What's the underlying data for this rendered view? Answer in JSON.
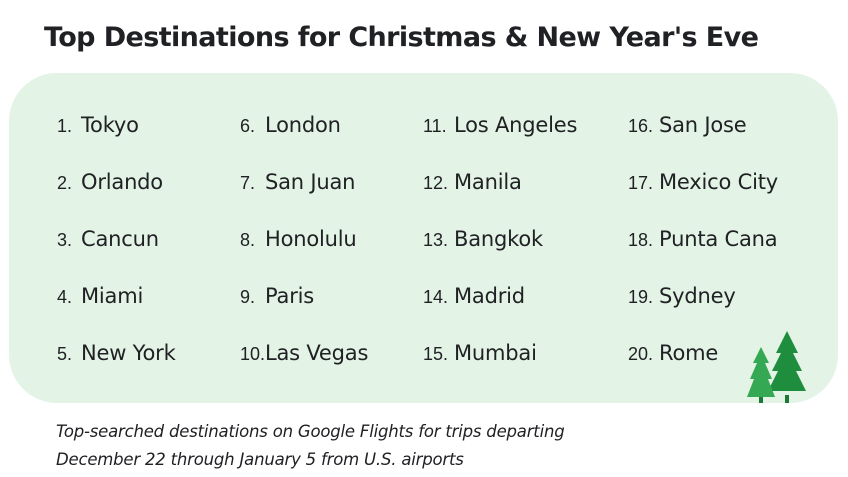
{
  "title": "Top Destinations for Christmas & New Year's Eve",
  "columns": [
    [
      {
        "num": "1.",
        "city": "Tokyo"
      },
      {
        "num": "2.",
        "city": "Orlando"
      },
      {
        "num": "3.",
        "city": "Cancun"
      },
      {
        "num": "4.",
        "city": "Miami"
      },
      {
        "num": "5.",
        "city": "New York"
      }
    ],
    [
      {
        "num": "6.",
        "city": "London"
      },
      {
        "num": "7.",
        "city": "San Juan"
      },
      {
        "num": "8.",
        "city": "Honolulu"
      },
      {
        "num": "9.",
        "city": "Paris"
      },
      {
        "num": "10.",
        "city": "Las Vegas"
      }
    ],
    [
      {
        "num": "11.",
        "city": "Los Angeles"
      },
      {
        "num": "12.",
        "city": "Manila"
      },
      {
        "num": "13.",
        "city": "Bangkok"
      },
      {
        "num": "14.",
        "city": "Madrid"
      },
      {
        "num": "15.",
        "city": "Mumbai"
      }
    ],
    [
      {
        "num": "16.",
        "city": "San Jose"
      },
      {
        "num": "17.",
        "city": "Mexico City"
      },
      {
        "num": "18.",
        "city": "Punta Cana"
      },
      {
        "num": "19.",
        "city": "Sydney"
      },
      {
        "num": "20.",
        "city": "Rome"
      }
    ]
  ],
  "caption": {
    "line1": "Top-searched destinations on Google Flights for trips departing",
    "line2": "December 22 through January 5 from U.S. airports"
  },
  "colors": {
    "panel": "#e3f3e6",
    "tree_dark": "#1e8e3e",
    "tree_light": "#34a853"
  }
}
